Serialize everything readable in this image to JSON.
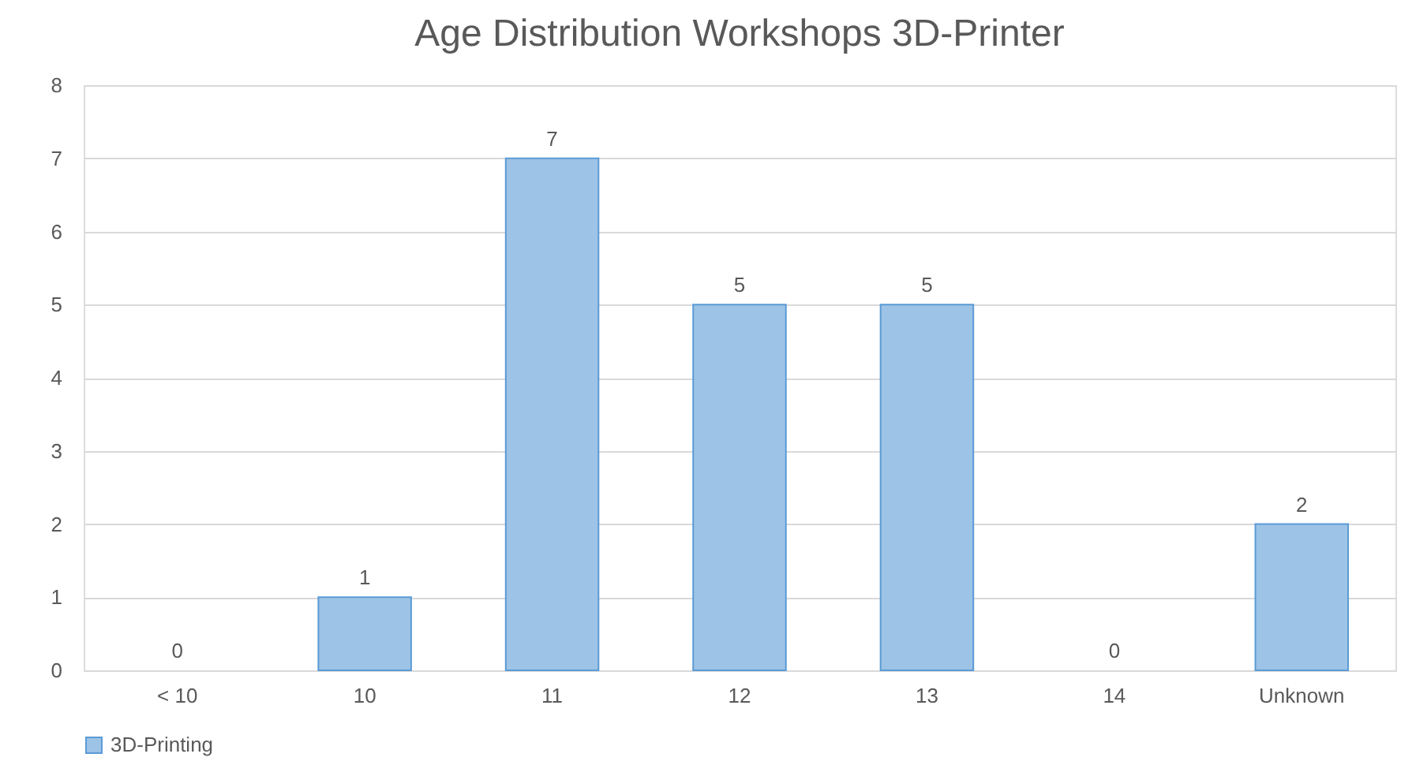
{
  "chart_data": {
    "type": "bar",
    "title": "Age Distribution Workshops 3D-Printer",
    "categories": [
      "< 10",
      "10",
      "11",
      "12",
      "13",
      "14",
      "Unknown"
    ],
    "series": [
      {
        "name": "3D-Printing",
        "color": "#9dc3e6",
        "values": [
          0,
          1,
          7,
          5,
          5,
          0,
          2
        ]
      }
    ],
    "ylim": [
      0,
      8
    ],
    "yticks": [
      0,
      1,
      2,
      3,
      4,
      5,
      6,
      7,
      8
    ],
    "grid": "y",
    "legend": "bottom",
    "data_labels": true
  }
}
